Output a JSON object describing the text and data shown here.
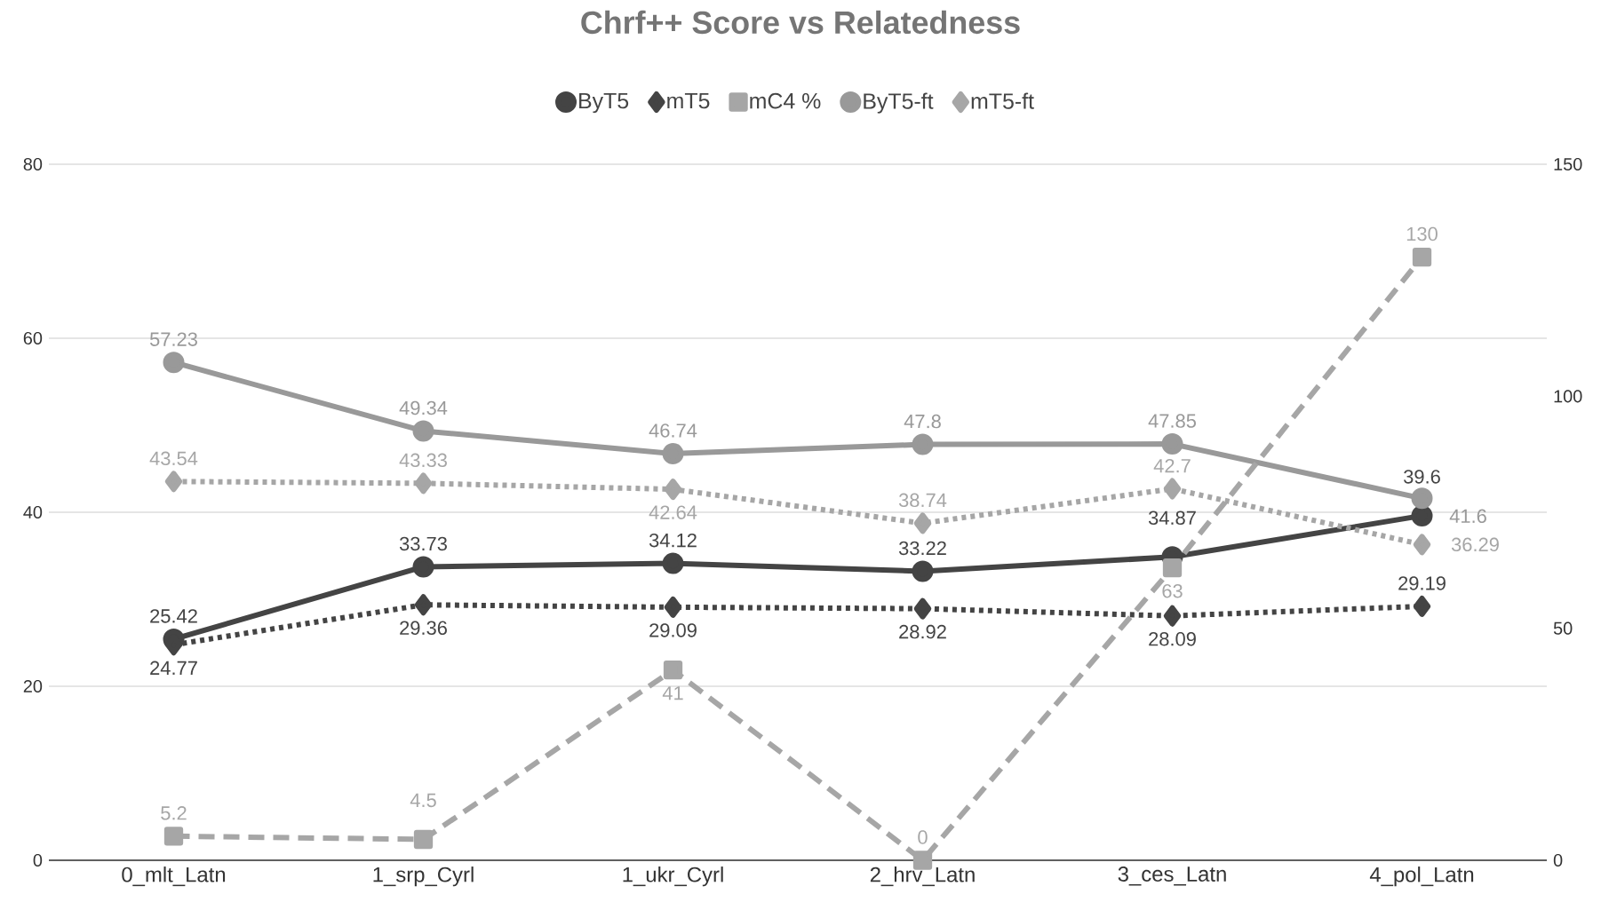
{
  "chart_data": {
    "type": "line",
    "title": "Chrf++ Score vs Relatedness",
    "categories": [
      "0_mlt_Latn",
      "1_srp_Cyrl",
      "1_ukr_Cyrl",
      "2_hrv_Latn",
      "3_ces_Latn",
      "4_pol_Latn"
    ],
    "series": [
      {
        "name": "ByT5",
        "color": "#444444",
        "marker": "circle",
        "line_style": "solid",
        "values": [
          25.42,
          33.73,
          34.12,
          33.22,
          34.87,
          39.6
        ]
      },
      {
        "name": "mT5",
        "color": "#444444",
        "marker": "diamond",
        "line_style": "dotted",
        "values": [
          24.77,
          29.36,
          29.09,
          28.92,
          28.09,
          29.19
        ]
      },
      {
        "name": "mC4 %",
        "color": "#a6a6a6",
        "marker": "square",
        "line_style": "dashed",
        "axis": "y2",
        "values": [
          5.2,
          4.5,
          41,
          0,
          63,
          130
        ]
      },
      {
        "name": "ByT5-ft",
        "color": "#999999",
        "marker": "circle",
        "line_style": "solid",
        "values": [
          57.23,
          49.34,
          46.74,
          47.8,
          47.85,
          41.6
        ]
      },
      {
        "name": "mT5-ft",
        "color": "#a6a6a6",
        "marker": "diamond",
        "line_style": "dotted",
        "values": [
          43.54,
          43.33,
          42.64,
          38.74,
          42.7,
          36.29
        ]
      }
    ],
    "ylim": [
      0,
      80
    ],
    "yticks": [
      0,
      20,
      40,
      60,
      80
    ],
    "y2lim": [
      0,
      150
    ],
    "y2ticks": [
      0,
      50,
      100,
      150
    ],
    "grid": "y",
    "legend": "top",
    "data_labels": true
  }
}
